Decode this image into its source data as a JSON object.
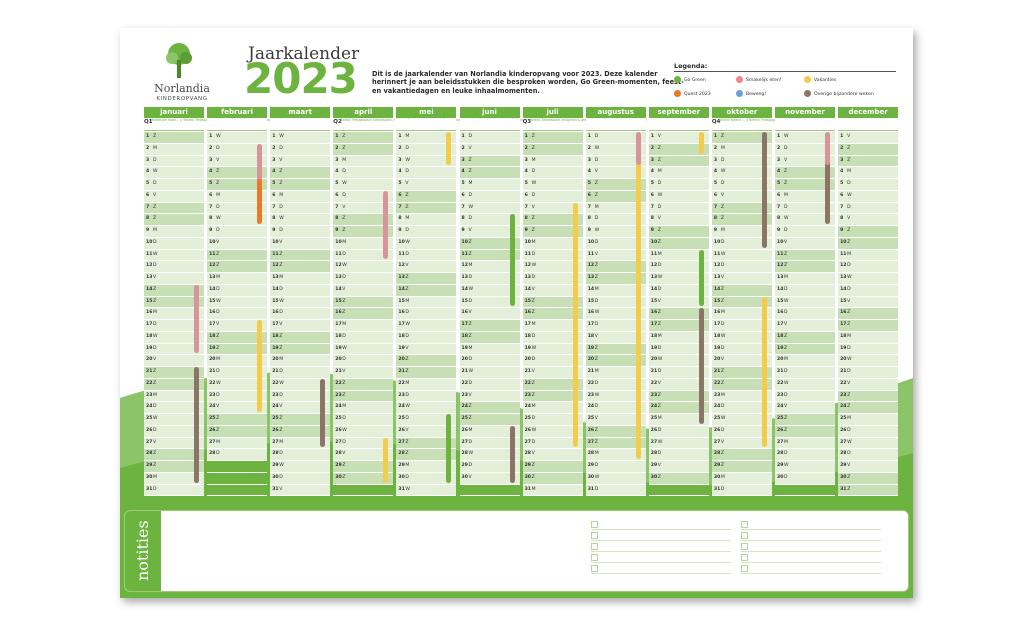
{
  "brand": {
    "name": "Norlandia",
    "sub": "KINDEROPVANG"
  },
  "header": {
    "title": "Jaarkalender",
    "year": "2023",
    "intro": "Dit is de jaarkalender van Norlandia kinderopvang voor 2023. Deze kalender herinnert je aan beleidsstukken die besproken worden, Go Green-momenten, feest- en vakantiedagen en leuke inhaalmomenten."
  },
  "legend": {
    "title": "Legenda:",
    "items": [
      {
        "label": "Go Green",
        "color": "#6cb33f"
      },
      {
        "label": "Smakelijk eten!",
        "color": "#e8888f"
      },
      {
        "label": "Vakanties",
        "color": "#f2cc4a"
      },
      {
        "label": "Quest 2023",
        "color": "#e87a2a"
      },
      {
        "label": "Beweeg!",
        "color": "#6aa0d8"
      },
      {
        "label": "Overige bijzondere weken",
        "color": "#8a7566"
      }
    ]
  },
  "colors": {
    "green": "#6cb33f",
    "light": "#e3efd8",
    "weekend": "#c7dfb4",
    "pink": "#d9949b",
    "yellow": "#f2cc4a",
    "brown": "#8a7566",
    "orange": "#e87a2a"
  },
  "months": [
    {
      "name": "januari",
      "q": "Q1",
      "qtext": "Wettelijke eisen... // Beleid: Pedagogisch beleid ... Beleid: Beschrijven veiligheid & gezondheid"
    },
    {
      "name": "februari",
      "q": "",
      "qtext": ""
    },
    {
      "name": "maart",
      "q": "",
      "qtext": ""
    },
    {
      "name": "april",
      "q": "Q2",
      "qtext": "Beleid: Pedagogisch beleidsplan // Beleid: Pedagogisch beleid // Beleid: Inkoopbeleid // Beleid: Verandering Projectplan"
    },
    {
      "name": "mei",
      "q": "",
      "qtext": ""
    },
    {
      "name": "juni",
      "q": "",
      "qtext": ""
    },
    {
      "name": "juli",
      "q": "Q3",
      "qtext": "Beleid: Beleidsplan veiligheid & gezondheid // Beleid: Pedagogisch beleid"
    },
    {
      "name": "augustus",
      "q": "",
      "qtext": ""
    },
    {
      "name": "september",
      "q": "",
      "qtext": ""
    },
    {
      "name": "oktober",
      "q": "Q4",
      "qtext": "Beleid: Beleid ... // Beleid: Pedagogisch beleid // Informatie organisatie"
    },
    {
      "name": "november",
      "q": "",
      "qtext": ""
    },
    {
      "name": "december",
      "q": "",
      "qtext": ""
    }
  ],
  "notes": {
    "label": "notities"
  }
}
